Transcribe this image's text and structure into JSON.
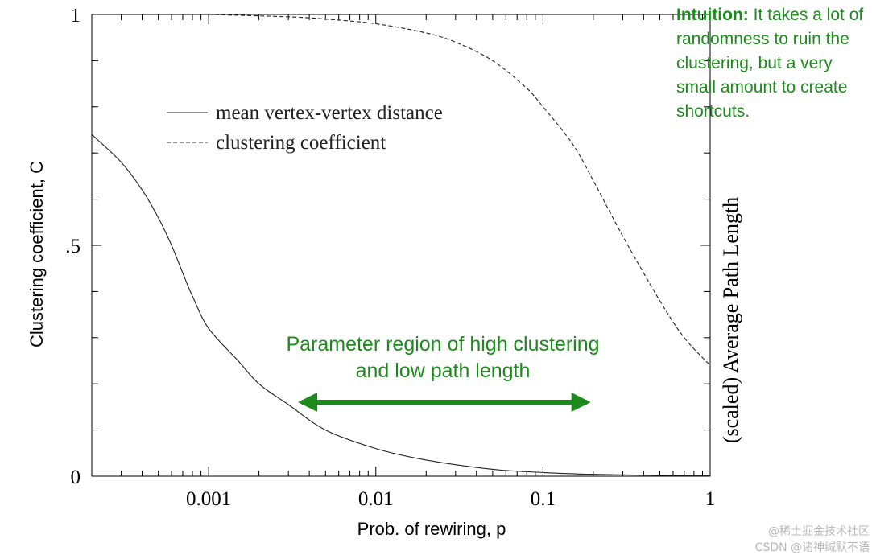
{
  "chart_data": {
    "type": "line",
    "xscale": "log",
    "xlim": [
      0.0002,
      1
    ],
    "ylim": [
      0,
      1
    ],
    "xlabel": "Prob. of rewiring, p",
    "ylabel_left": "Clustering coefficient, C",
    "ylabel_right": "(scaled) Average Path Length",
    "x_ticks": [
      {
        "value": 0.001,
        "label": "0.001"
      },
      {
        "value": 0.01,
        "label": "0.01"
      },
      {
        "value": 0.1,
        "label": "0.1"
      },
      {
        "value": 1,
        "label": "1"
      }
    ],
    "y_ticks": [
      {
        "value": 0,
        "label": "0"
      },
      {
        "value": 0.5,
        "label": ".5"
      },
      {
        "value": 1,
        "label": "1"
      }
    ],
    "series": [
      {
        "name": "mean vertex-vertex distance",
        "style": "solid",
        "points": [
          [
            0.0002,
            0.74
          ],
          [
            0.0003,
            0.68
          ],
          [
            0.0004,
            0.62
          ],
          [
            0.0005,
            0.56
          ],
          [
            0.0006,
            0.5
          ],
          [
            0.0007,
            0.44
          ],
          [
            0.0008,
            0.39
          ],
          [
            0.001,
            0.32
          ],
          [
            0.0015,
            0.25
          ],
          [
            0.002,
            0.2
          ],
          [
            0.003,
            0.155
          ],
          [
            0.005,
            0.1
          ],
          [
            0.01,
            0.06
          ],
          [
            0.02,
            0.035
          ],
          [
            0.05,
            0.015
          ],
          [
            0.1,
            0.008
          ],
          [
            0.2,
            0.004
          ],
          [
            0.5,
            0.002
          ],
          [
            1,
            0.001
          ]
        ]
      },
      {
        "name": "clustering coefficient",
        "style": "dashed",
        "points": [
          [
            0.001,
            1.0
          ],
          [
            0.003,
            0.995
          ],
          [
            0.005,
            0.99
          ],
          [
            0.01,
            0.98
          ],
          [
            0.02,
            0.96
          ],
          [
            0.03,
            0.94
          ],
          [
            0.05,
            0.9
          ],
          [
            0.08,
            0.84
          ],
          [
            0.1,
            0.8
          ],
          [
            0.15,
            0.72
          ],
          [
            0.2,
            0.64
          ],
          [
            0.3,
            0.52
          ],
          [
            0.5,
            0.38
          ],
          [
            0.7,
            0.3
          ],
          [
            1,
            0.24
          ]
        ]
      }
    ],
    "annotations": {
      "intuition_title": "Intuition:",
      "intuition_text": "It takes a lot of randomness to ruin the clustering, but a very small amount to create shortcuts.",
      "region_label": "Parameter region of high clustering and low path length",
      "region_range": [
        0.0033,
        0.2
      ]
    },
    "colors": {
      "axis": "#000000",
      "line": "#222222",
      "annotation": "#1e8a1e"
    }
  },
  "watermark": {
    "line1": "@稀土掘金技术社区",
    "line2": "CSDN @诸神缄默不语"
  }
}
